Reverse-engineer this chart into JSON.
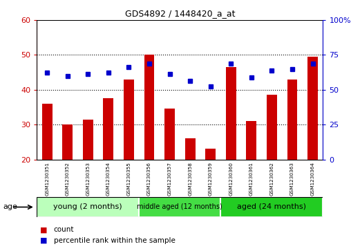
{
  "title": "GDS4892 / 1448420_a_at",
  "samples": [
    "GSM1230351",
    "GSM1230352",
    "GSM1230353",
    "GSM1230354",
    "GSM1230355",
    "GSM1230356",
    "GSM1230357",
    "GSM1230358",
    "GSM1230359",
    "GSM1230360",
    "GSM1230361",
    "GSM1230362",
    "GSM1230363",
    "GSM1230364"
  ],
  "counts": [
    36,
    30,
    31.5,
    37.5,
    43,
    50,
    34.5,
    26,
    23,
    46.5,
    31,
    38.5,
    43,
    49.5
  ],
  "percentiles_right": [
    62.5,
    60,
    61.25,
    62.5,
    66.25,
    68.75,
    61.25,
    56.25,
    52.5,
    68.75,
    58.75,
    63.75,
    65,
    68.75
  ],
  "bar_color": "#cc0000",
  "dot_color": "#0000cc",
  "ylim_left": [
    20,
    60
  ],
  "ylim_right": [
    0,
    100
  ],
  "yticks_left": [
    20,
    30,
    40,
    50,
    60
  ],
  "yticks_right": [
    0,
    25,
    50,
    75,
    100
  ],
  "ytick_right_labels": [
    "0",
    "25",
    "50",
    "75",
    "100%"
  ],
  "groups": [
    {
      "label": "young (2 months)",
      "start": 0,
      "end": 5
    },
    {
      "label": "middle aged (12 months)",
      "start": 5,
      "end": 9
    },
    {
      "label": "aged (24 months)",
      "start": 9,
      "end": 14
    }
  ],
  "group_colors": [
    "#bbffbb",
    "#44dd44",
    "#22cc22"
  ],
  "tick_label_area_color": "#cccccc",
  "age_label": "age",
  "legend_count_label": "count",
  "legend_pct_label": "percentile rank within the sample"
}
